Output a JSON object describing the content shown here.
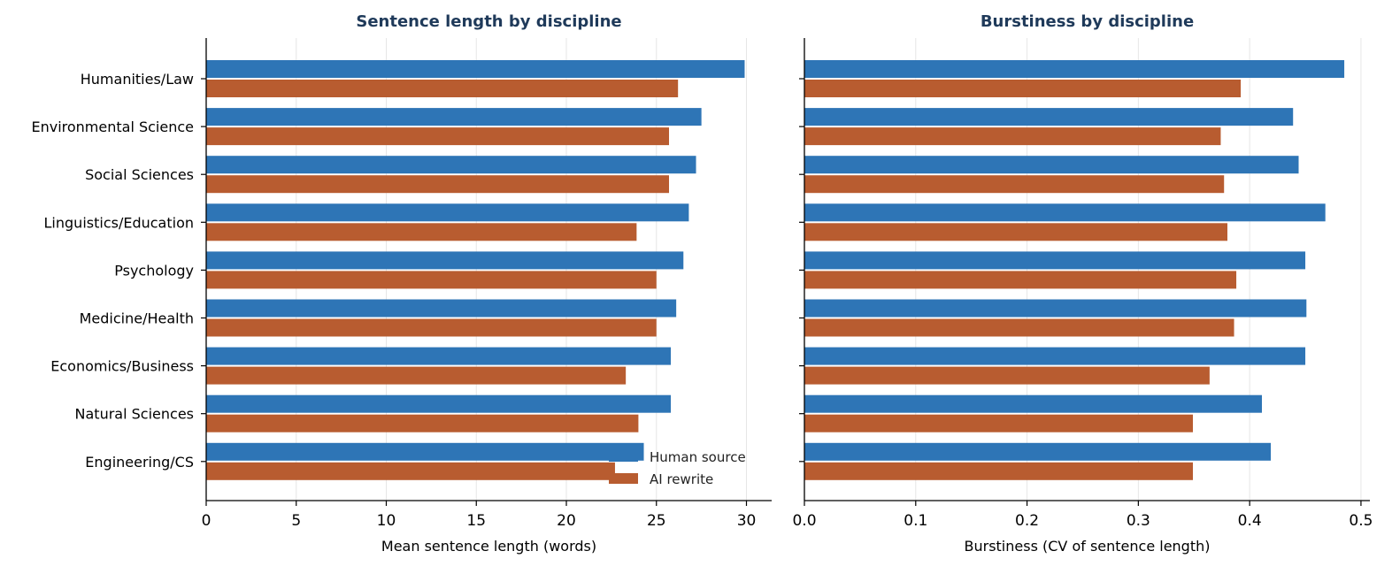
{
  "chart_data": [
    {
      "type": "bar",
      "orientation": "horizontal",
      "title": "Sentence length by discipline",
      "xlabel": "Mean sentence length (words)",
      "ylabel": "",
      "xlim": [
        0,
        31.4
      ],
      "xticks": [
        0,
        5,
        10,
        15,
        20,
        25,
        30
      ],
      "xtick_labels": [
        "0",
        "5",
        "10",
        "15",
        "20",
        "25",
        "30"
      ],
      "grid": "vertical",
      "legend": "bottom-right",
      "categories": [
        "Humanities/Law",
        "Environmental Science",
        "Social Sciences",
        "Linguistics/Education",
        "Psychology",
        "Medicine/Health",
        "Economics/Business",
        "Natural Sciences",
        "Engineering/CS"
      ],
      "series": [
        {
          "name": "Human source",
          "color": "#2e75b6",
          "values": [
            29.9,
            27.5,
            27.2,
            26.8,
            26.5,
            26.1,
            25.8,
            25.8,
            24.3
          ]
        },
        {
          "name": "AI rewrite",
          "color": "#b85c30",
          "values": [
            26.2,
            25.7,
            25.7,
            23.9,
            25.0,
            25.0,
            23.3,
            24.0,
            22.7
          ]
        }
      ]
    },
    {
      "type": "bar",
      "orientation": "horizontal",
      "title": "Burstiness by discipline",
      "xlabel": "Burstiness (CV of sentence length)",
      "ylabel": "",
      "xlim": [
        0,
        0.508
      ],
      "xticks": [
        0,
        0.1,
        0.2,
        0.3,
        0.4,
        0.5
      ],
      "xtick_labels": [
        "0.0",
        "0.1",
        "0.2",
        "0.3",
        "0.4",
        "0.5"
      ],
      "grid": "vertical",
      "legend": "",
      "categories": [
        "Humanities/Law",
        "Environmental Science",
        "Social Sciences",
        "Linguistics/Education",
        "Psychology",
        "Medicine/Health",
        "Economics/Business",
        "Natural Sciences",
        "Engineering/CS"
      ],
      "series": [
        {
          "name": "Human source",
          "color": "#2e75b6",
          "values": [
            0.485,
            0.439,
            0.444,
            0.468,
            0.45,
            0.451,
            0.45,
            0.411,
            0.419
          ]
        },
        {
          "name": "AI rewrite",
          "color": "#b85c30",
          "values": [
            0.392,
            0.374,
            0.377,
            0.38,
            0.388,
            0.386,
            0.364,
            0.349,
            0.349
          ]
        }
      ]
    }
  ],
  "legend": {
    "items": [
      {
        "label": "Human source",
        "color": "#2e75b6"
      },
      {
        "label": "AI rewrite",
        "color": "#b85c30"
      }
    ]
  },
  "style": {
    "title_color": "#1f3a5a",
    "axis_color": "#000000",
    "grid_color": "#e6e6e6"
  }
}
